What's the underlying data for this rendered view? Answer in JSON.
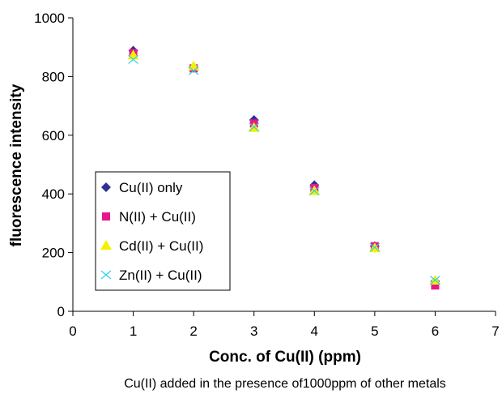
{
  "chart_data": {
    "type": "scatter",
    "title": "",
    "xlabel": "Conc. of Cu(II) (ppm)",
    "ylabel": "fluorescence intensity",
    "caption": "Cu(II) added in the presence of1000ppm of other metals",
    "xlim": [
      0,
      7
    ],
    "ylim": [
      0,
      1000
    ],
    "xticks": [
      0,
      1,
      2,
      3,
      4,
      5,
      6,
      7
    ],
    "yticks": [
      0,
      200,
      400,
      600,
      800,
      1000
    ],
    "grid": false,
    "legend_position": "left-middle",
    "series": [
      {
        "name": "Cu(II) only",
        "marker": "diamond",
        "color": "#2E3192",
        "x": [
          1,
          2,
          3,
          4,
          5,
          6
        ],
        "y": [
          888,
          830,
          652,
          430,
          222,
          102
        ]
      },
      {
        "name": "N(II) + Cu(II)",
        "marker": "square",
        "color": "#E6198C",
        "x": [
          1,
          2,
          3,
          4,
          5,
          6
        ],
        "y": [
          880,
          828,
          640,
          420,
          222,
          88
        ]
      },
      {
        "name": "Cd(II) + Cu(II)",
        "marker": "triangle",
        "color": "#F2F200",
        "x": [
          1,
          2,
          3,
          4,
          5,
          6
        ],
        "y": [
          872,
          835,
          625,
          410,
          215,
          105
        ]
      },
      {
        "name": "Zn(II) + Cu(II)",
        "marker": "x",
        "color": "#33CCEE",
        "x": [
          1,
          2,
          3,
          4,
          5,
          6
        ],
        "y": [
          858,
          820,
          628,
          410,
          218,
          106
        ]
      }
    ]
  }
}
